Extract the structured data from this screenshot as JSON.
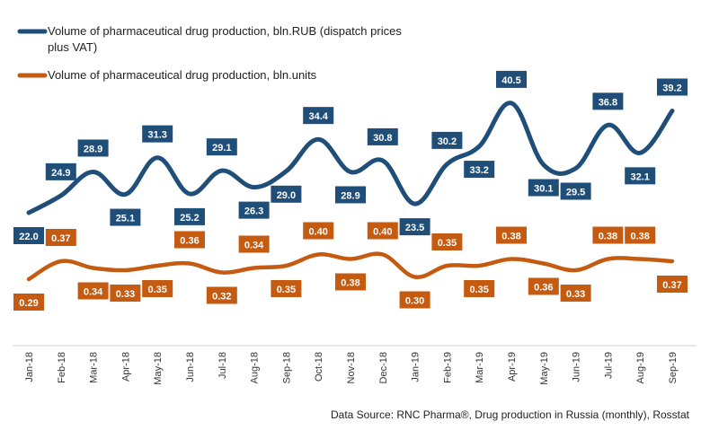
{
  "chart_data": {
    "type": "line",
    "categories": [
      "Jan-18",
      "Feb-18",
      "Mar-18",
      "Apr-18",
      "May-18",
      "Jun-18",
      "Jul-18",
      "Aug-18",
      "Sep-18",
      "Oct-18",
      "Nov-18",
      "Dec-18",
      "Jan-19",
      "Feb-19",
      "Mar-19",
      "Apr-19",
      "May-19",
      "Jun-19",
      "Jul-19",
      "Aug-19",
      "Sep-19"
    ],
    "series": [
      {
        "name": "Volume of pharmaceutical drug production, bln.RUB (dispatch prices plus VAT)",
        "color": "#1f4e79",
        "values": [
          22.0,
          24.9,
          28.9,
          25.1,
          31.3,
          25.2,
          29.1,
          26.3,
          29.0,
          34.4,
          28.9,
          30.8,
          23.5,
          30.2,
          33.2,
          40.5,
          30.1,
          29.5,
          36.8,
          32.1,
          39.2
        ],
        "labels": [
          "22.0",
          "24.9",
          "28.9",
          "25.1",
          "31.3",
          "25.2",
          "29.1",
          "26.3",
          "29.0",
          "34.4",
          "28.9",
          "30.8",
          "23.5",
          "30.2",
          "33.2",
          "40.5",
          "30.1",
          "29.5",
          "36.8",
          "32.1",
          "39.2"
        ]
      },
      {
        "name": "Volume of pharmaceutical drug production, bln.units",
        "color": "#c55a11",
        "values": [
          0.29,
          0.37,
          0.34,
          0.33,
          0.35,
          0.36,
          0.32,
          0.34,
          0.35,
          0.4,
          0.38,
          0.4,
          0.3,
          0.35,
          0.35,
          0.38,
          0.36,
          0.33,
          0.38,
          0.38,
          0.37
        ],
        "labels": [
          "0.29",
          "0.37",
          "0.34",
          "0.33",
          "0.35",
          "0.36",
          "0.32",
          "0.34",
          "0.35",
          "0.40",
          "0.38",
          "0.40",
          "0.30",
          "0.35",
          "0.35",
          "0.38",
          "0.36",
          "0.33",
          "0.38",
          "0.38",
          "0.37"
        ]
      }
    ],
    "legend": {
      "rub_line1": "Volume of pharmaceutical drug production, bln.RUB (dispatch prices",
      "rub_line2": "plus VAT)",
      "units": "Volume of pharmaceutical drug production, bln.units",
      "position": "top-left"
    },
    "grid": false
  },
  "source": "Data Source: RNC Pharma®, Drug production in Russia (monthly), Rosstat"
}
